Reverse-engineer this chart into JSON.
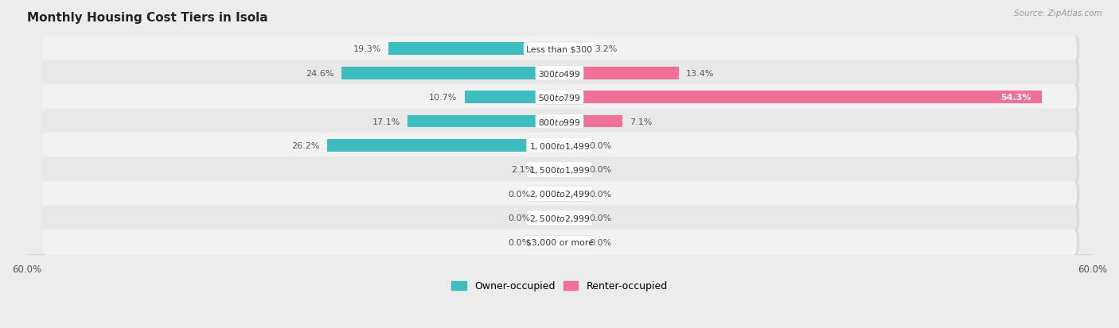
{
  "title": "Monthly Housing Cost Tiers in Isola",
  "source": "Source: ZipAtlas.com",
  "categories": [
    "Less than $300",
    "$300 to $499",
    "$500 to $799",
    "$800 to $999",
    "$1,000 to $1,499",
    "$1,500 to $1,999",
    "$2,000 to $2,499",
    "$2,500 to $2,999",
    "$3,000 or more"
  ],
  "owner_values": [
    19.3,
    24.6,
    10.7,
    17.1,
    26.2,
    2.1,
    0.0,
    0.0,
    0.0
  ],
  "renter_values": [
    3.2,
    13.4,
    54.3,
    7.1,
    0.0,
    0.0,
    0.0,
    0.0,
    0.0
  ],
  "owner_color": "#3dbdbd",
  "renter_color": "#f07098",
  "owner_color_light": "#a0d8d8",
  "renter_color_light": "#f5aec5",
  "axis_limit": 60.0,
  "bar_height": 0.52,
  "row_bg_even": "#f2f2f2",
  "row_bg_odd": "#e8e8e8",
  "background_color": "#ececec",
  "stub_size": 2.5
}
